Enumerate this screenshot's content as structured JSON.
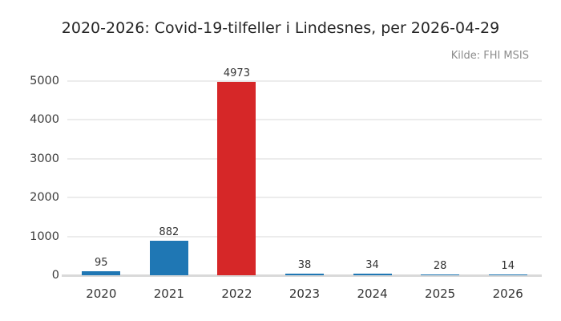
{
  "chart_data": {
    "type": "bar",
    "title": "2020-2026: Covid-19-tilfeller i Lindesnes, per 2026-04-29",
    "source": "Kilde: FHI MSIS",
    "categories": [
      "2020",
      "2021",
      "2022",
      "2023",
      "2024",
      "2025",
      "2026"
    ],
    "values": [
      95,
      882,
      4973,
      38,
      34,
      28,
      14
    ],
    "bar_colors": [
      "#1f77b4",
      "#1f77b4",
      "#d62728",
      "#1f77b4",
      "#1f77b4",
      "#1f77b4",
      "#1f77b4"
    ],
    "value_labels": [
      "95",
      "882",
      "4973",
      "38",
      "34",
      "28",
      "14"
    ],
    "xlabel": "",
    "ylabel": "",
    "ylim": [
      0,
      5000
    ],
    "yticks": [
      0,
      1000,
      2000,
      3000,
      4000,
      5000
    ],
    "grid": "horizontal",
    "legend": "none",
    "colors": {
      "accent_blue": "#1f77b4",
      "accent_red": "#d62728",
      "title_text": "#262626",
      "tick_text": "#3a3a3a",
      "source_text": "#8c8c8c",
      "gridline": "#ececec",
      "baseline": "#d9d9d9",
      "background": "#ffffff"
    }
  }
}
